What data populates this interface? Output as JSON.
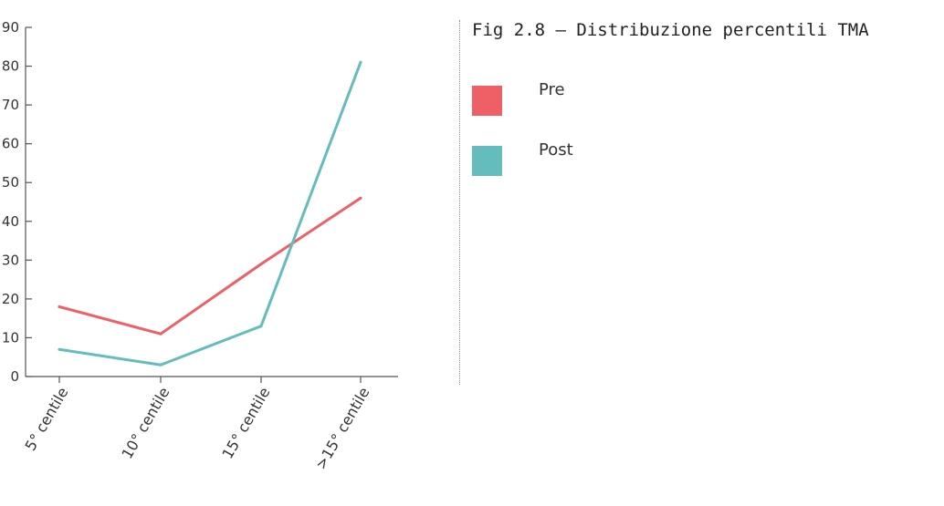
{
  "figure": {
    "title": "Fig 2.8 – Distribuzione percentili TMA"
  },
  "legend": [
    {
      "label": "Pre",
      "color": "#EE5F66"
    },
    {
      "label": "Post",
      "color": "#65BCBC"
    }
  ],
  "chart_data": {
    "type": "line",
    "title": "Fig 2.8 – Distribuzione percentili TMA",
    "categories": [
      "5° centile",
      "10° centile",
      "15° centile",
      ">15° centile"
    ],
    "series": [
      {
        "name": "Pre",
        "color": "#EE5F66",
        "values": [
          18,
          11,
          29,
          46
        ]
      },
      {
        "name": "Post",
        "color": "#65BCBC",
        "values": [
          7,
          3,
          13,
          81
        ]
      }
    ],
    "ylim": [
      0,
      90
    ],
    "yticks": [
      0,
      10,
      20,
      30,
      40,
      50,
      60,
      70,
      80,
      90
    ],
    "xlabel": "",
    "ylabel": "",
    "grid": false,
    "legend_position": "right"
  }
}
